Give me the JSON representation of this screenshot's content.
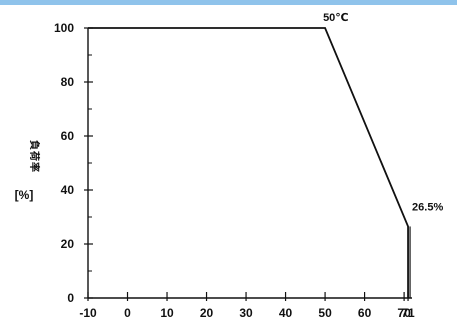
{
  "chart_data": {
    "type": "line",
    "title": "",
    "xlabel": "",
    "ylabel": "",
    "y_unit_label": "[%]",
    "ylabel_vertical": "負荷率",
    "xlim": [
      -10,
      72
    ],
    "ylim": [
      0,
      100
    ],
    "x_ticks": [
      -10,
      0,
      10,
      20,
      30,
      40,
      50,
      60,
      70,
      71
    ],
    "x_tick_labels": [
      "-10",
      "0",
      "10",
      "20",
      "30",
      "40",
      "50",
      "60",
      "70",
      "71"
    ],
    "y_ticks": [
      0,
      20,
      40,
      60,
      80,
      100
    ],
    "y_tick_labels": [
      "0",
      "20",
      "40",
      "60",
      "80",
      "100"
    ],
    "grid": false,
    "series": [
      {
        "x": [
          -10,
          50,
          71,
          71
        ],
        "y": [
          100,
          100,
          26.5,
          0
        ]
      }
    ],
    "annotations": [
      {
        "text": "50℃",
        "x": 50,
        "y": 100
      },
      {
        "text": "26.5%",
        "x": 71,
        "y": 26.5
      }
    ],
    "colors": {
      "line": "#111111",
      "axis": "#111111",
      "top_bar": "#8fc3eb"
    }
  }
}
